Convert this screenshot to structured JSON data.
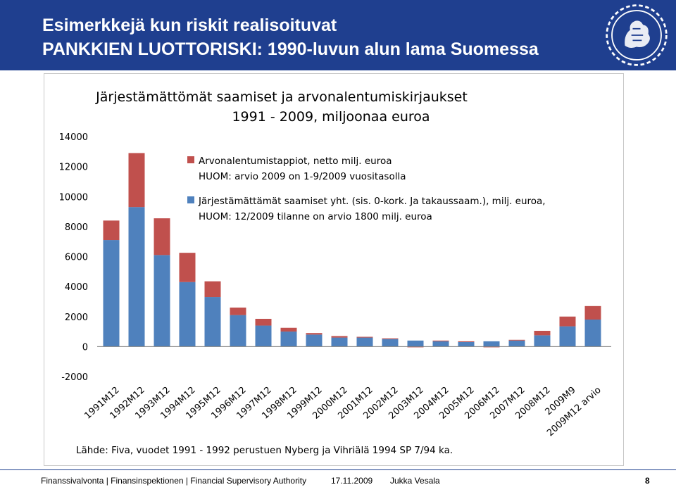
{
  "header": {
    "title_line1": "Esimerkkejä kun riskit realisoituvat",
    "title_line2": "PANKKIEN LUOTTORISKI: 1990-luvun alun lama Suomessa"
  },
  "footer": {
    "organization": "Finanssivalvonta | Finansinspektionen | Financial Supervisory Authority",
    "date": "17.11.2009",
    "author": "Jukka Vesala",
    "page": "8"
  },
  "colors": {
    "header_bg": "#1f3f8f",
    "series_blue": "#4f81bd",
    "series_red": "#c0504d"
  },
  "chart_data": {
    "type": "bar",
    "stacked": true,
    "title_line1": "Järjestämättömät saamiset ja arvonalentumiskirjaukset",
    "title_line2": "1991 - 2009, miljoonaa euroa",
    "categories": [
      "1991M12",
      "1992M12",
      "1993M12",
      "1994M12",
      "1995M12",
      "1996M12",
      "1997M12",
      "1998M12",
      "1999M12",
      "2000M12",
      "2001M12",
      "2002M12",
      "2003M12",
      "2004M12",
      "2005M12",
      "2006M12",
      "2007M12",
      "2008M12",
      "2009M9",
      "2009M12 arvio"
    ],
    "series": [
      {
        "name": "Järjestämättämät saamiset yht. (sis. 0-kork. Ja takaussaam.), milj. euroa,",
        "note": "HUOM: 12/2009 tilanne on arvio 1800 milj. euroa",
        "color": "#4f81bd",
        "values": [
          7100,
          9300,
          6100,
          4300,
          3300,
          2100,
          1400,
          1000,
          800,
          600,
          600,
          500,
          400,
          350,
          300,
          350,
          400,
          750,
          1350,
          1800
        ]
      },
      {
        "name": "Arvonalentumistappiot, netto milj. euroa",
        "note": "HUOM: arvio 2009 on 1-9/2009 vuositasolla",
        "color": "#c0504d",
        "values": [
          1300,
          3600,
          2450,
          1950,
          1050,
          500,
          450,
          250,
          100,
          100,
          50,
          50,
          -50,
          50,
          50,
          -50,
          50,
          300,
          650,
          900
        ]
      }
    ],
    "ylim": [
      -2000,
      14000
    ],
    "yticks": [
      -2000,
      0,
      2000,
      4000,
      6000,
      8000,
      10000,
      12000,
      14000
    ],
    "legend_position": "top-right",
    "grid": false,
    "source": "Lähde: Fiva, vuodet 1991 - 1992 perustuen Nyberg ja Vihriälä 1994 SP 7/94 ka."
  }
}
